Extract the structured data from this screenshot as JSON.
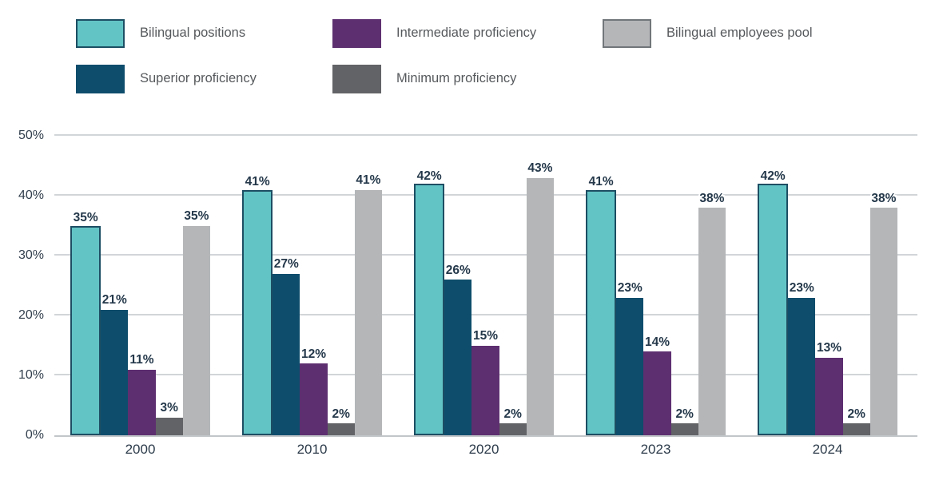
{
  "chart_data": {
    "type": "bar",
    "categories": [
      "2000",
      "2010",
      "2020",
      "2023",
      "2024"
    ],
    "series": [
      {
        "name": "Bilingual positions",
        "color": "#63C4C6",
        "border_color": "#1D4E63",
        "values": [
          35,
          41,
          42,
          41,
          42
        ]
      },
      {
        "name": "Superior proficiency",
        "color": "#0E4D6C",
        "values": [
          21,
          27,
          26,
          23,
          23
        ]
      },
      {
        "name": "Intermediate proficiency",
        "color": "#5D2F70",
        "values": [
          11,
          12,
          15,
          14,
          13
        ]
      },
      {
        "name": "Minimum proficiency",
        "color": "#626366",
        "values": [
          3,
          2,
          2,
          2,
          2
        ]
      },
      {
        "name": "Bilingual employees pool",
        "color": "#B4B6B8",
        "values": [
          35,
          41,
          43,
          38,
          38
        ]
      }
    ],
    "value_label_suffix": "%",
    "y_ticks": [
      {
        "value": 0,
        "label": "0%"
      },
      {
        "value": 10,
        "label": "10%"
      },
      {
        "value": 20,
        "label": "20%"
      },
      {
        "value": 30,
        "label": "30%"
      },
      {
        "value": 40,
        "label": "40%"
      },
      {
        "value": 50,
        "label": "50%"
      }
    ],
    "ylim": [
      0,
      50
    ],
    "grid": true,
    "legend_position": "top"
  },
  "legend": {
    "items": [
      {
        "label": "Bilingual positions",
        "row": 0,
        "swatch_border": "#1D4E63"
      },
      {
        "label": "Intermediate proficiency",
        "row": 0
      },
      {
        "label": "Bilingual employees pool",
        "row": 0,
        "swatch_border": "#71767A"
      },
      {
        "label": "Superior proficiency",
        "row": 1
      },
      {
        "label": "Minimum proficiency",
        "row": 1
      }
    ]
  },
  "colors": {
    "background": "#FFFFFF",
    "grid_line": "#D2D5D8",
    "axis_line": "#C2C6C9",
    "tick_label": "#323F4D",
    "value_label": "#24384A",
    "legend_label": "#56595C"
  }
}
